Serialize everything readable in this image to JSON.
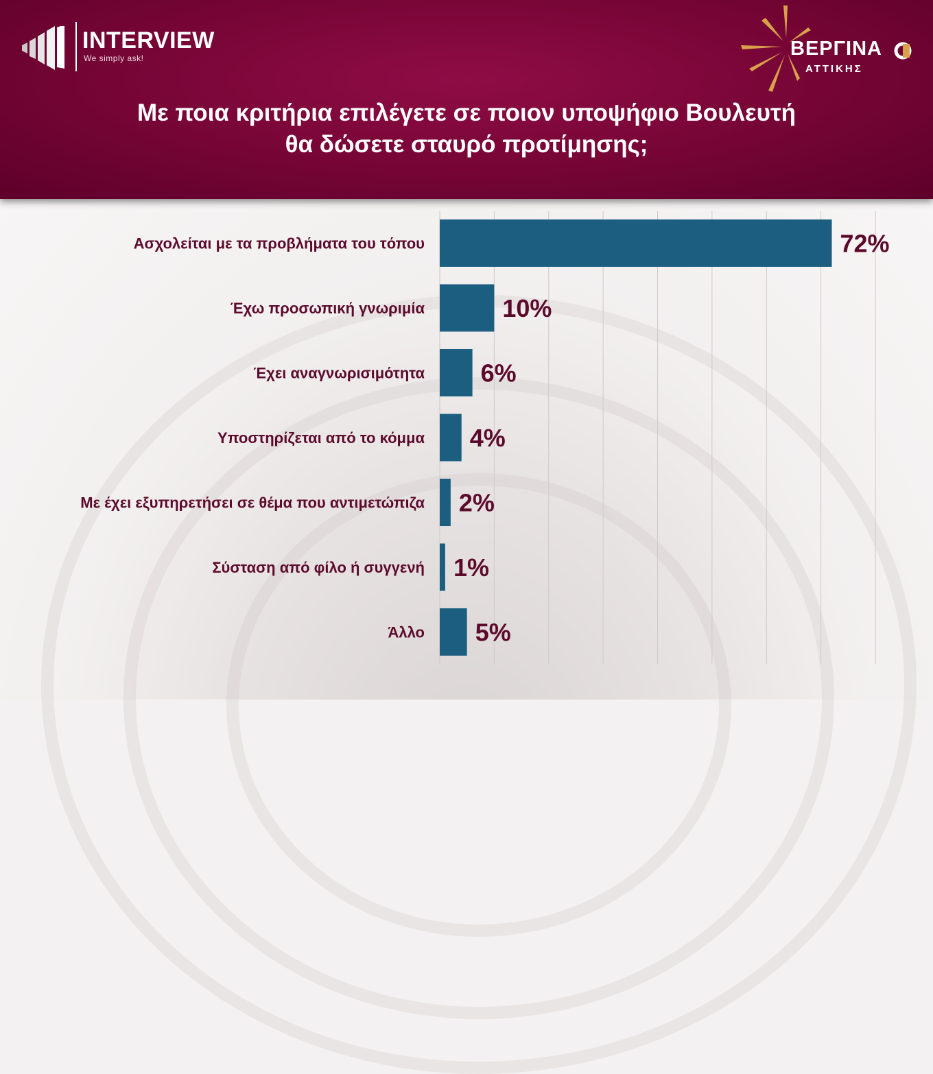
{
  "header": {
    "logo_left_name": "INTERVIEW",
    "logo_left_tagline": "We simply ask!",
    "logo_right_name": "ΒΕΡΓΙΝΑ",
    "logo_right_sub": "ΑΤΤΙΚΗΣ",
    "title_line1": "Με ποια κριτήρια επιλέγετε σε ποιον υποψήφιο Βουλευτή",
    "title_line2": "θα δώσετε σταυρό προτίμησης;"
  },
  "colors": {
    "header_bg": "#7a0638",
    "bar": "#1b5e80",
    "label_text": "#5c0a2c",
    "value_text": "#5c0a2c",
    "logo_gold": "#d9a24a"
  },
  "chart_data": {
    "type": "bar",
    "orientation": "horizontal",
    "categories": [
      "Ασχολείται με τα προβλήματα του τόπου",
      "Έχω προσωπική γνωριμία",
      "Έχει αναγνωρισιμότητα",
      "Υποστηρίζεται από το κόμμα",
      "Με έχει εξυπηρετήσει σε θέμα που αντιμετώπιζα",
      "Σύσταση από φίλο ή συγγενή",
      "Άλλο"
    ],
    "values": [
      72,
      10,
      6,
      4,
      2,
      1,
      5
    ],
    "value_labels": [
      "72%",
      "10%",
      "6%",
      "4%",
      "2%",
      "1%",
      "5%"
    ],
    "xlim": [
      0,
      80
    ],
    "grid": true,
    "unit": "%"
  }
}
